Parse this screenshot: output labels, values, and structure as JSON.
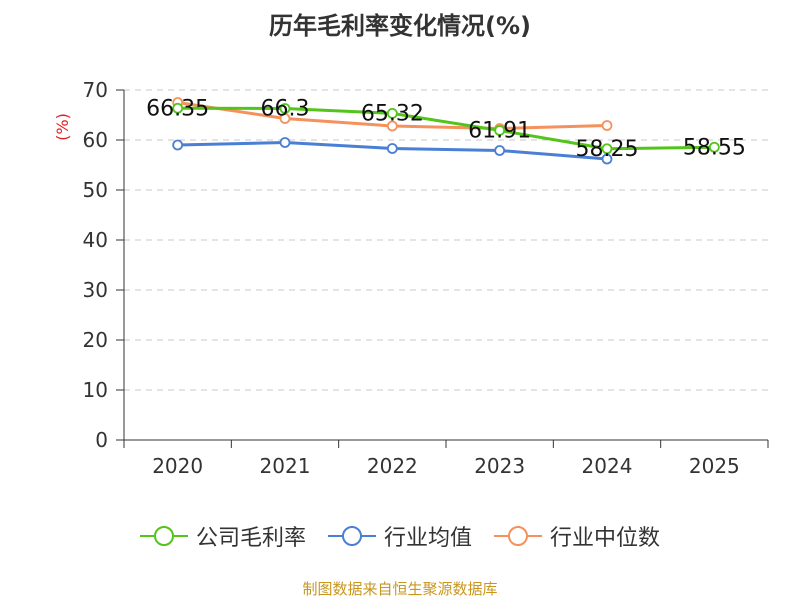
{
  "title": "历年毛利率变化情况(%)",
  "source": "制图数据来自恒生聚源数据库",
  "chart_data": {
    "type": "line",
    "title": "历年毛利率变化情况(%)",
    "ylabel": "(%)",
    "xlabel": "",
    "categories": [
      "2020",
      "2021",
      "2022",
      "2023",
      "2024",
      "2025"
    ],
    "ylim": [
      0,
      70
    ],
    "yticks": [
      0,
      10,
      20,
      30,
      40,
      50,
      60,
      70
    ],
    "grid": true,
    "legend_position": "bottom",
    "series": [
      {
        "name": "公司毛利率",
        "color": "#52c41a",
        "values": [
          66.35,
          66.3,
          65.32,
          61.91,
          58.25,
          58.55
        ],
        "labels": [
          "66.35",
          "66.3",
          "65.32",
          "61.91",
          "58.25",
          "58.55"
        ]
      },
      {
        "name": "行业均值",
        "color": "#4a7fd6",
        "values": [
          59.0,
          59.5,
          58.3,
          57.9,
          56.2,
          null
        ]
      },
      {
        "name": "行业中位数",
        "color": "#f5915a",
        "values": [
          67.5,
          64.3,
          62.8,
          62.3,
          62.9,
          null
        ]
      }
    ]
  }
}
